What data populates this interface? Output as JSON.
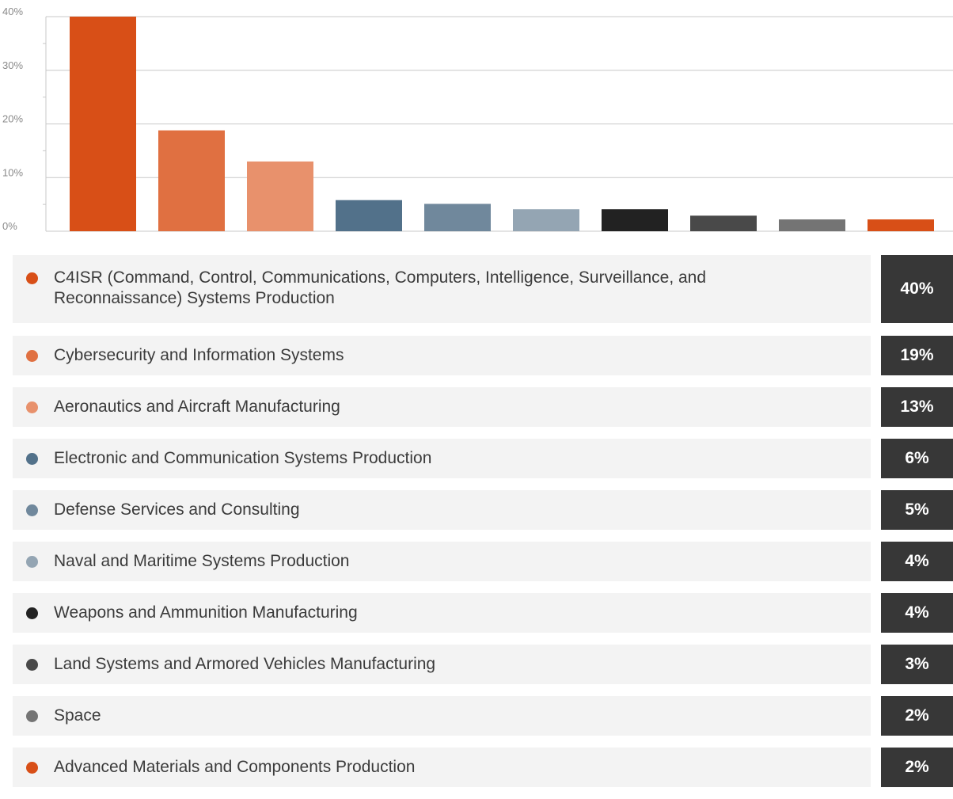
{
  "chart_data": {
    "type": "bar",
    "ylim": [
      0,
      40
    ],
    "y_ticks": [
      "0%",
      "10%",
      "20%",
      "30%",
      "40%"
    ],
    "grid": true,
    "legend": "below",
    "categories": [
      "C4ISR (Command, Control, Communications, Computers, Intelligence, Surveillance, and Reconnaissance) Systems Production",
      "Cybersecurity and Information Systems",
      "Aeronautics and Aircraft Manufacturing",
      "Electronic and Communication Systems Production",
      "Defense Services and Consulting",
      "Naval and Maritime Systems Production",
      "Weapons and Ammunition Manufacturing",
      "Land Systems and Armored Vehicles Manufacturing",
      "Space",
      "Advanced Materials and Components Production"
    ],
    "values": [
      40,
      18.8,
      13,
      5.8,
      5.1,
      4.1,
      4.1,
      2.9,
      2.2,
      2.2
    ],
    "value_labels": [
      "40%",
      "19%",
      "13%",
      "6%",
      "5%",
      "4%",
      "4%",
      "3%",
      "2%",
      "2%"
    ],
    "colors": [
      "#d84f17",
      "#e07041",
      "#e8916c",
      "#52718a",
      "#70889c",
      "#94a5b3",
      "#222222",
      "#494949",
      "#747474",
      "#d84f17"
    ]
  }
}
